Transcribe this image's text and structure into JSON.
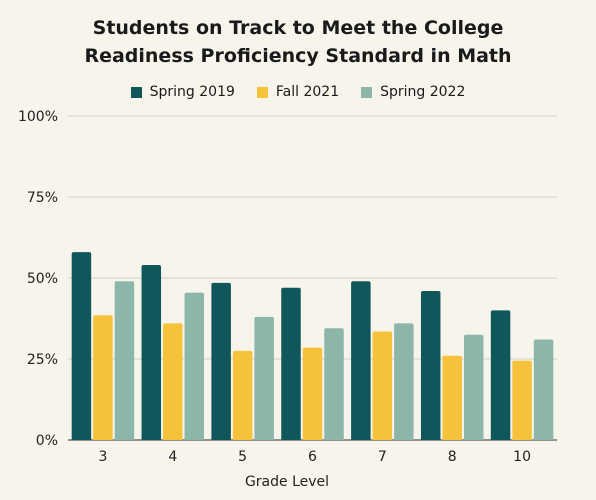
{
  "chart_data": {
    "type": "bar",
    "title_lines": [
      "Students on Track to Meet the College",
      "Readiness Proficiency Standard in Math"
    ],
    "xlabel": "Grade Level",
    "ylabel": "",
    "categories": [
      "3",
      "4",
      "5",
      "6",
      "7",
      "8",
      "10"
    ],
    "yticks": [
      "0%",
      "25%",
      "50%",
      "75%",
      "100%"
    ],
    "ylim": [
      0,
      100
    ],
    "grid": true,
    "legend_position": "top",
    "series": [
      {
        "name": "Spring 2019",
        "color": "#10575b",
        "values": [
          58,
          54,
          48.5,
          47,
          49,
          46,
          40
        ]
      },
      {
        "name": "Fall 2021",
        "color": "#f7c23b",
        "values": [
          38.5,
          36,
          27.5,
          28.5,
          33.5,
          26,
          24.5
        ]
      },
      {
        "name": "Spring 2022",
        "color": "#8db6aa",
        "values": [
          49,
          45.5,
          38,
          34.5,
          36,
          32.5,
          31
        ]
      }
    ]
  }
}
